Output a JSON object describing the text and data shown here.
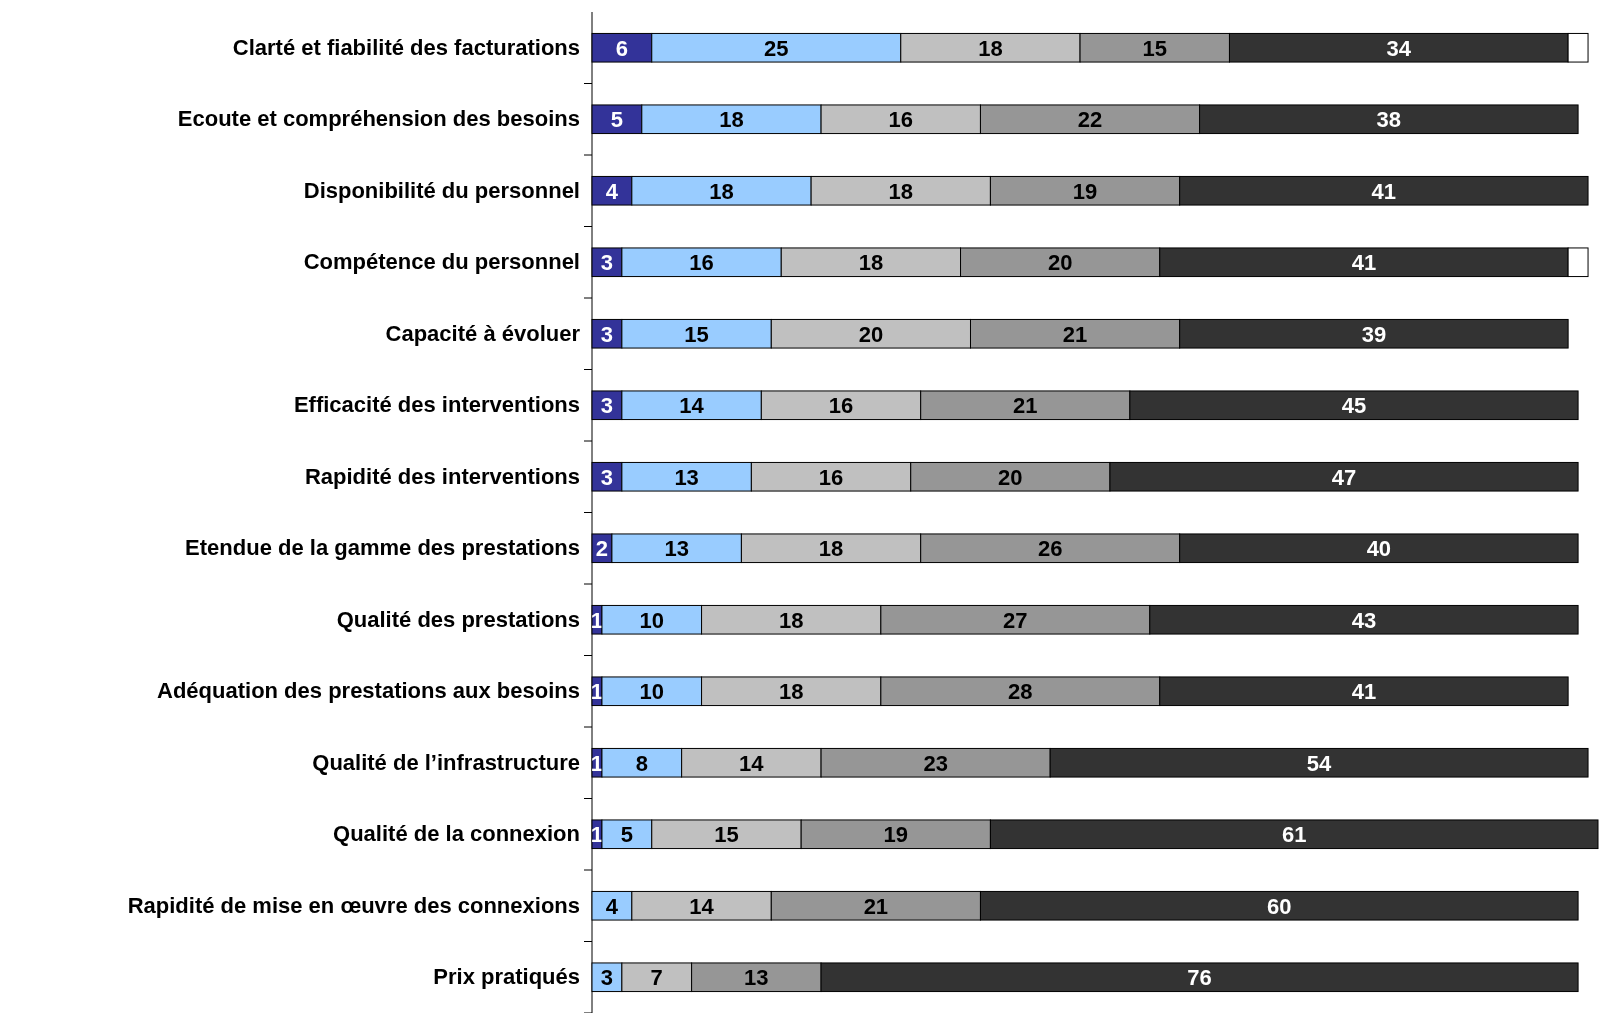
{
  "chart_data": {
    "type": "bar",
    "orientation": "horizontal",
    "stacked": true,
    "tick_labels": "y",
    "grid": false,
    "categories": [
      "Clarté et fiabilité des facturations",
      "Ecoute et compréhension des besoins",
      "Disponibilité du personnel",
      "Compétence du personnel",
      "Capacité à évoluer",
      "Efficacité des interventions",
      "Rapidité des interventions",
      "Etendue de la gamme des prestations",
      "Qualité des prestations",
      "Adéquation des prestations aux besoins",
      "Qualité de l’infrastructure",
      "Qualité de la connexion",
      "Rapidité de mise en œuvre des connexions",
      "Prix pratiqués"
    ],
    "series": [
      {
        "color": "#333399",
        "values": [
          6,
          5,
          4,
          3,
          3,
          3,
          3,
          2,
          1,
          1,
          1,
          1,
          null,
          null
        ],
        "value_labels": [
          "6",
          "5",
          "4",
          "3",
          "3",
          "3",
          "3",
          "2",
          "1",
          "1",
          "1",
          "1",
          null,
          null
        ]
      },
      {
        "color": "#99ccff",
        "values": [
          25,
          18,
          18,
          16,
          15,
          14,
          13,
          13,
          10,
          10,
          8,
          5,
          4,
          3
        ],
        "value_labels": [
          "25",
          "18",
          "18",
          "16",
          "15",
          "14",
          "13",
          "13",
          "10",
          "10",
          "8",
          "5",
          "4",
          "3"
        ]
      },
      {
        "color": "#c0c0c0",
        "values": [
          18,
          16,
          18,
          18,
          20,
          16,
          16,
          18,
          18,
          18,
          14,
          15,
          14,
          7
        ],
        "value_labels": [
          "18",
          "16",
          "18",
          "18",
          "20",
          "16",
          "16",
          "18",
          "18",
          "18",
          "14",
          "15",
          "14",
          "7"
        ]
      },
      {
        "color": "#969696",
        "values": [
          15,
          22,
          19,
          20,
          21,
          21,
          20,
          26,
          27,
          28,
          23,
          19,
          21,
          13
        ],
        "value_labels": [
          "15",
          "22",
          "19",
          "20",
          "21",
          "21",
          "20",
          "26",
          "27",
          "28",
          "23",
          "19",
          "21",
          "13"
        ]
      },
      {
        "color": "#333333",
        "values": [
          34,
          38,
          41,
          41,
          39,
          45,
          47,
          40,
          43,
          41,
          54,
          61,
          60,
          76
        ],
        "value_labels": [
          "34",
          "38",
          "41",
          "41",
          "39",
          "45",
          "47",
          "40",
          "43",
          "41",
          "54",
          "61",
          "60",
          "76"
        ]
      },
      {
        "color": "#ffffff",
        "values": [
          2,
          null,
          null,
          2,
          null,
          null,
          null,
          null,
          null,
          null,
          null,
          null,
          null,
          null
        ],
        "value_labels": [
          null,
          null,
          null,
          null,
          null,
          null,
          null,
          null,
          null,
          null,
          null,
          null,
          null,
          null
        ]
      }
    ]
  }
}
